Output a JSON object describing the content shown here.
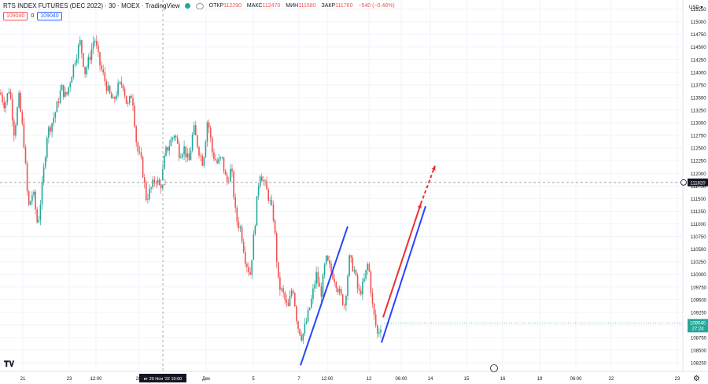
{
  "header": {
    "title": "RTS INDEX FUTURES (DEC 2022) · 30 · MOEX · TradingView",
    "open_label": "ОТКР",
    "open_value": "112290",
    "high_label": "МАКС",
    "high_value": "112470",
    "low_label": "МИН",
    "low_value": "111580",
    "close_label": "ЗАКР",
    "close_value": "111760",
    "change": "−540 (−0.48%)"
  },
  "order_boxes": {
    "sell": "109040",
    "spread": "0",
    "buy": "109040"
  },
  "currency_label": "USD ▾",
  "crosshair": {
    "price_label": "111820",
    "date_label": "вт 29 Ноя '22   10:00"
  },
  "last_price": {
    "value": "109040",
    "countdown": "27:24"
  },
  "colors": {
    "up": "#26a69a",
    "down": "#ef5350",
    "blue_line": "#2944ff",
    "red_arrow": "#ee3030"
  },
  "icons": {
    "gear": "gear-icon",
    "logo": "tradingview-logo-icon",
    "scroll": "scroll-to-realtime-icon"
  },
  "chart_data": {
    "type": "candlestick",
    "y_ticks": [
      108250,
      108500,
      108750,
      109000,
      109250,
      109500,
      109750,
      110000,
      110250,
      110500,
      110750,
      111000,
      111250,
      111500,
      111750,
      112000,
      112250,
      112500,
      112750,
      113000,
      113250,
      113500,
      113750,
      114000,
      114250,
      114500,
      114750,
      115000,
      115250
    ],
    "ylim": [
      108100,
      115400
    ],
    "x_tick_labels": [
      "21",
      "23",
      "12:00",
      "28",
      "Дек",
      "5",
      "7",
      "12:00",
      "12",
      "06:00",
      "14",
      "15",
      "16",
      "19",
      "06:00",
      "22",
      "23"
    ],
    "close_path": [
      [
        0,
        113600
      ],
      [
        6,
        113350
      ],
      [
        12,
        113700
      ],
      [
        18,
        112800
      ],
      [
        24,
        113500
      ],
      [
        30,
        112700
      ],
      [
        36,
        111300
      ],
      [
        42,
        111650
      ],
      [
        48,
        110950
      ],
      [
        54,
        111800
      ],
      [
        60,
        112800
      ],
      [
        66,
        113000
      ],
      [
        72,
        113300
      ],
      [
        78,
        113700
      ],
      [
        84,
        113500
      ],
      [
        90,
        113900
      ],
      [
        96,
        114300
      ],
      [
        102,
        114600
      ],
      [
        108,
        114000
      ],
      [
        114,
        114300
      ],
      [
        120,
        114700
      ],
      [
        126,
        114200
      ],
      [
        132,
        113900
      ],
      [
        138,
        113600
      ],
      [
        144,
        113400
      ],
      [
        150,
        113700
      ],
      [
        156,
        113800
      ],
      [
        162,
        113300
      ],
      [
        168,
        113600
      ],
      [
        174,
        112500
      ],
      [
        180,
        112200
      ],
      [
        186,
        111500
      ],
      [
        192,
        111700
      ],
      [
        198,
        111900
      ],
      [
        204,
        111700
      ],
      [
        210,
        112400
      ],
      [
        216,
        112600
      ],
      [
        222,
        112800
      ],
      [
        228,
        112400
      ],
      [
        234,
        112500
      ],
      [
        240,
        112200
      ],
      [
        246,
        112900
      ],
      [
        252,
        112500
      ],
      [
        258,
        112200
      ],
      [
        264,
        113100
      ],
      [
        270,
        112400
      ],
      [
        276,
        112200
      ],
      [
        282,
        112300
      ],
      [
        288,
        111800
      ],
      [
        294,
        112100
      ],
      [
        300,
        111100
      ],
      [
        306,
        110900
      ],
      [
        312,
        110300
      ],
      [
        318,
        110000
      ],
      [
        324,
        111000
      ],
      [
        330,
        112050
      ],
      [
        336,
        111800
      ],
      [
        342,
        111500
      ],
      [
        348,
        111100
      ],
      [
        354,
        109800
      ],
      [
        360,
        109600
      ],
      [
        366,
        109300
      ],
      [
        372,
        109800
      ],
      [
        378,
        109000
      ],
      [
        384,
        108750
      ],
      [
        390,
        109100
      ],
      [
        396,
        109500
      ],
      [
        402,
        110000
      ],
      [
        408,
        109600
      ],
      [
        414,
        110300
      ],
      [
        420,
        110100
      ],
      [
        426,
        109900
      ],
      [
        432,
        109600
      ],
      [
        438,
        109400
      ],
      [
        444,
        110300
      ],
      [
        450,
        110100
      ],
      [
        456,
        109600
      ],
      [
        462,
        109800
      ],
      [
        468,
        110250
      ],
      [
        474,
        109300
      ],
      [
        480,
        108800
      ],
      [
        485,
        109040
      ]
    ],
    "drawings": [
      {
        "type": "trend_line",
        "color": "blue",
        "from": [
          382,
          108200
        ],
        "to": [
          442,
          110950
        ]
      },
      {
        "type": "trend_line",
        "color": "blue",
        "from": [
          485,
          108650
        ],
        "to": [
          541,
          111350
        ]
      },
      {
        "type": "arrow",
        "color": "red",
        "from": [
          487,
          109150
        ],
        "to": [
          535,
          111400
        ]
      },
      {
        "type": "arrow_dashed",
        "color": "red",
        "from": [
          535,
          111400
        ],
        "to": [
          553,
          112150
        ]
      }
    ]
  }
}
